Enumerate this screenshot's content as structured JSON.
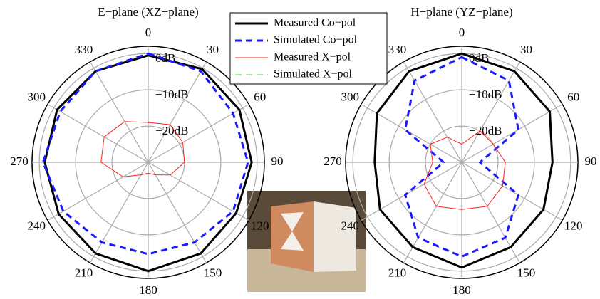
{
  "chart_data": [
    {
      "type": "polar",
      "title": "E−plane (XZ−plane)",
      "theta": [
        0,
        30,
        60,
        90,
        120,
        150,
        180,
        210,
        240,
        270,
        300,
        330
      ],
      "rlim": [
        -30,
        2
      ],
      "rticks": [
        {
          "value": 0,
          "label": "0dB"
        },
        {
          "value": -10,
          "label": "−10dB"
        },
        {
          "value": -20,
          "label": "−20dB"
        }
      ],
      "thetaticks": [
        0,
        30,
        60,
        90,
        120,
        150,
        180,
        210,
        240,
        270,
        300,
        330
      ],
      "grid": true,
      "series": [
        {
          "name": "Measured Co−pol",
          "color": "#000000",
          "dash": false,
          "width": 3,
          "values": [
            -0.5,
            -0.3,
            -1,
            -1.5,
            -2,
            -1,
            0,
            -1,
            -1.5,
            -1.5,
            -1,
            -1
          ]
        },
        {
          "name": "Simulated Co−pol",
          "color": "#1a1aff",
          "dash": true,
          "width": 3,
          "values": [
            0,
            -1,
            -3,
            -2.5,
            -3,
            -4.5,
            -4.7,
            -4.5,
            -3,
            -1,
            -2,
            -1
          ]
        },
        {
          "name": "Measured X−pol",
          "color": "#ff2020",
          "dash": false,
          "width": 1,
          "values": [
            -19,
            -18,
            -19,
            -20,
            -23,
            -26,
            -27,
            -26,
            -22,
            -17,
            -16,
            -17
          ]
        },
        {
          "name": "Simulated X−pol",
          "color": "#44dd44",
          "dash": true,
          "width": 1,
          "values": [
            null,
            null,
            null,
            null,
            null,
            null,
            null,
            null,
            null,
            null,
            null,
            null
          ]
        }
      ]
    },
    {
      "type": "polar",
      "title": "H−plane (YZ−plane)",
      "theta": [
        0,
        30,
        60,
        90,
        120,
        150,
        180,
        210,
        240,
        270,
        300,
        330
      ],
      "rlim": [
        -30,
        2
      ],
      "rticks": [
        {
          "value": 0,
          "label": "0dB"
        },
        {
          "value": -10,
          "label": "−10dB"
        },
        {
          "value": -20,
          "label": "−20dB"
        }
      ],
      "thetaticks": [
        0,
        30,
        60,
        90,
        120,
        150,
        180,
        210,
        240,
        270,
        300,
        330
      ],
      "grid": true,
      "series": [
        {
          "color": "#000000",
          "dash": false,
          "width": 3,
          "values": [
            0,
            -1,
            -2,
            -5,
            -4,
            -3,
            -1,
            -3,
            -4,
            -6,
            -3,
            -1
          ]
        },
        {
          "color": "#1a1aff",
          "dash": true,
          "width": 3,
          "values": [
            -1,
            -4,
            -12,
            -25,
            -12,
            -6,
            -4,
            -6,
            -12,
            -25,
            -12,
            -4
          ]
        },
        {
          "color": "#ff2020",
          "dash": false,
          "width": 1,
          "values": [
            -25,
            -20,
            -20,
            -18,
            -17,
            -16,
            -17,
            -16,
            -18,
            -22,
            -20,
            -22
          ]
        }
      ]
    }
  ]
}
